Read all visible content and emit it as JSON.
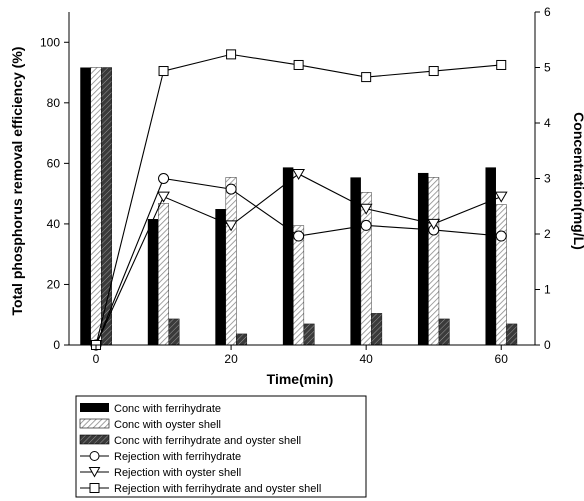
{
  "chart_data": {
    "type": "bar+line",
    "x_axis": {
      "label": "Time(min)",
      "range": [
        -4,
        65
      ],
      "ticks": [
        0,
        20,
        40,
        60
      ]
    },
    "y_left": {
      "label": "Total phosphorus removal efficiency (%)",
      "range": [
        0,
        110
      ],
      "ticks": [
        0,
        20,
        40,
        60,
        80,
        100
      ]
    },
    "y_right": {
      "label": "Concentration(mg/L)",
      "range": [
        0,
        6
      ],
      "ticks": [
        0,
        1,
        2,
        3,
        4,
        5,
        6
      ]
    },
    "categories": [
      0,
      10,
      20,
      30,
      40,
      50,
      60
    ],
    "bar_series": [
      {
        "name": "Conc with ferrihydrate",
        "axis": "right",
        "style": "solid-black",
        "values": [
          5.0,
          2.27,
          2.45,
          3.2,
          3.02,
          3.1,
          3.2
        ]
      },
      {
        "name": "Conc with oyster shell",
        "axis": "right",
        "style": "hatched-light",
        "values": [
          5.0,
          2.55,
          3.02,
          2.15,
          2.75,
          3.02,
          2.53
        ]
      },
      {
        "name": "Conc with ferrihydrate and oyster shell",
        "axis": "right",
        "style": "hatched-dark",
        "values": [
          5.0,
          0.47,
          0.2,
          0.38,
          0.57,
          0.47,
          0.38
        ]
      }
    ],
    "line_series": [
      {
        "name": "Rejection with ferrihydrate",
        "axis": "left",
        "marker": "circle",
        "values": [
          0,
          55,
          51.5,
          36,
          39.5,
          38,
          36
        ]
      },
      {
        "name": "Rejection with oyster shell",
        "axis": "left",
        "marker": "triangle-down",
        "values": [
          0,
          49,
          39.5,
          56.5,
          45,
          40,
          49
        ]
      },
      {
        "name": "Rejection with ferrihydrate and oyster shell",
        "axis": "left",
        "marker": "square",
        "values": [
          0,
          90.5,
          96,
          92.5,
          88.5,
          90.5,
          92.5
        ]
      }
    ],
    "legend": {
      "placement": "below-chart",
      "entries": [
        "Conc with ferrihydrate",
        "Conc with oyster shell",
        "Conc with ferrihydrate and oyster shell",
        "Rejection with ferrihydrate",
        "Rejection with oyster shell",
        "Rejection with ferrihydrate and oyster shell"
      ]
    },
    "grid": false
  }
}
